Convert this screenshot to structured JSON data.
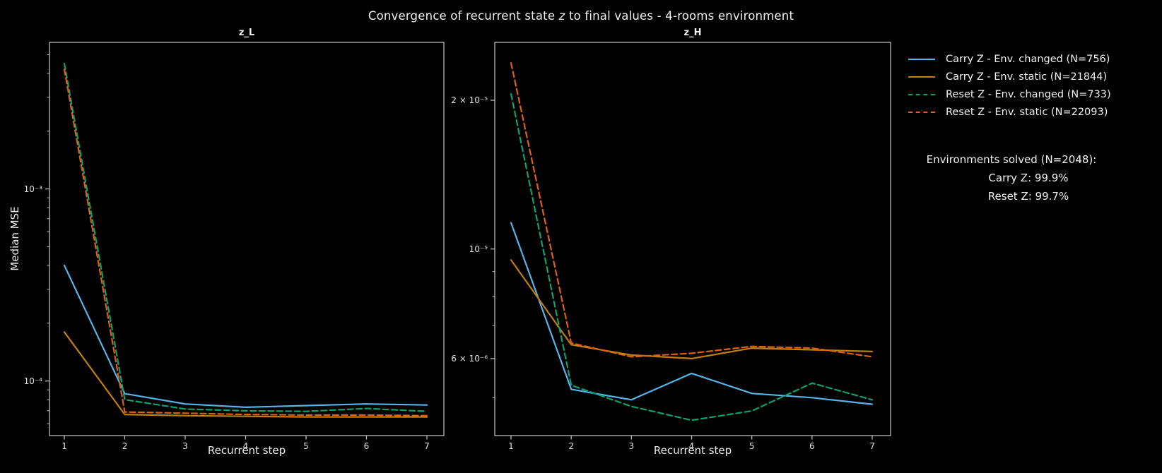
{
  "figure": {
    "title": {
      "pre": "Convergence of recurrent state ",
      "italic": "z",
      "post": " to final values - 4-rooms environment"
    }
  },
  "stats": {
    "title": "Environments solved (N=2048):",
    "carry": "Carry Z: 99.9%",
    "reset": "Reset Z: 99.7%"
  },
  "colors": {
    "background": "#000000",
    "text": "#f0f0f0",
    "spine": "#c9c9c9",
    "carry_changed": "#56b4e9",
    "carry_static": "#c07f07",
    "reset_changed": "#0ca173",
    "reset_static": "#dd6112"
  },
  "chart_data": [
    {
      "type": "line",
      "title": "z_L",
      "xlabel": "Recurrent step",
      "ylabel": "Median MSE",
      "yscale": "log",
      "grid": false,
      "x": [
        1,
        2,
        3,
        4,
        5,
        6,
        7
      ],
      "xlim": [
        0.754,
        7.281
      ],
      "ylim": [
        5.2e-05,
        0.0058
      ],
      "yticks": [
        {
          "value": 0.001,
          "label": "10⁻³"
        },
        {
          "value": 0.0001,
          "label": "10⁻⁴"
        }
      ],
      "series": [
        {
          "name": "Carry Z - Env. changed (N=756)",
          "color": "#56b4e9",
          "style": "solid",
          "values": [
            0.0004,
            8.6e-05,
            7.6e-05,
            7.3e-05,
            7.45e-05,
            7.6e-05,
            7.5e-05
          ]
        },
        {
          "name": "Carry Z - Env. static (N=21844)",
          "color": "#c07f07",
          "style": "solid",
          "values": [
            0.00018,
            6.7e-05,
            6.6e-05,
            6.55e-05,
            6.5e-05,
            6.5e-05,
            6.5e-05
          ]
        },
        {
          "name": "Reset Z - Env. changed (N=733)",
          "color": "#0ca173",
          "style": "dashed",
          "values": [
            0.0045,
            8e-05,
            7.15e-05,
            7e-05,
            6.95e-05,
            7.2e-05,
            6.95e-05
          ]
        },
        {
          "name": "Reset Z - Env. static (N=22093)",
          "color": "#dd6112",
          "style": "dashed",
          "values": [
            0.0042,
            6.9e-05,
            6.8e-05,
            6.7e-05,
            6.65e-05,
            6.65e-05,
            6.6e-05
          ]
        }
      ]
    },
    {
      "type": "line",
      "title": "z_H",
      "xlabel": "Recurrent step",
      "ylabel": "",
      "yscale": "log",
      "grid": false,
      "x": [
        1,
        2,
        3,
        4,
        5,
        6,
        7
      ],
      "xlim": [
        0.73,
        7.305
      ],
      "ylim": [
        4.19e-06,
        2.62e-05
      ],
      "yticks": [
        {
          "value": 2e-05,
          "label": "2 × 10⁻⁵"
        },
        {
          "value": 1e-05,
          "label": "10⁻⁵"
        },
        {
          "value": 6e-06,
          "label": "6 × 10⁻⁶"
        }
      ],
      "series": [
        {
          "name": "Carry Z - Env. changed (N=756)",
          "color": "#56b4e9",
          "style": "solid",
          "values": [
            1.13e-05,
            5.2e-06,
            4.95e-06,
            5.6e-06,
            5.1e-06,
            5e-06,
            4.85e-06
          ]
        },
        {
          "name": "Carry Z - Env. static (N=21844)",
          "color": "#c07f07",
          "style": "solid",
          "values": [
            9.5e-06,
            6.4e-06,
            6.1e-06,
            6e-06,
            6.3e-06,
            6.25e-06,
            6.2e-06
          ]
        },
        {
          "name": "Reset Z - Env. changed (N=733)",
          "color": "#0ca173",
          "style": "dashed",
          "values": [
            2.06e-05,
            5.3e-06,
            4.8e-06,
            4.5e-06,
            4.7e-06,
            5.35e-06,
            4.95e-06
          ]
        },
        {
          "name": "Reset Z - Env. static (N=22093)",
          "color": "#dd6112",
          "style": "dashed",
          "values": [
            2.38e-05,
            6.45e-06,
            6.05e-06,
            6.15e-06,
            6.35e-06,
            6.3e-06,
            6.05e-06
          ]
        }
      ]
    }
  ]
}
